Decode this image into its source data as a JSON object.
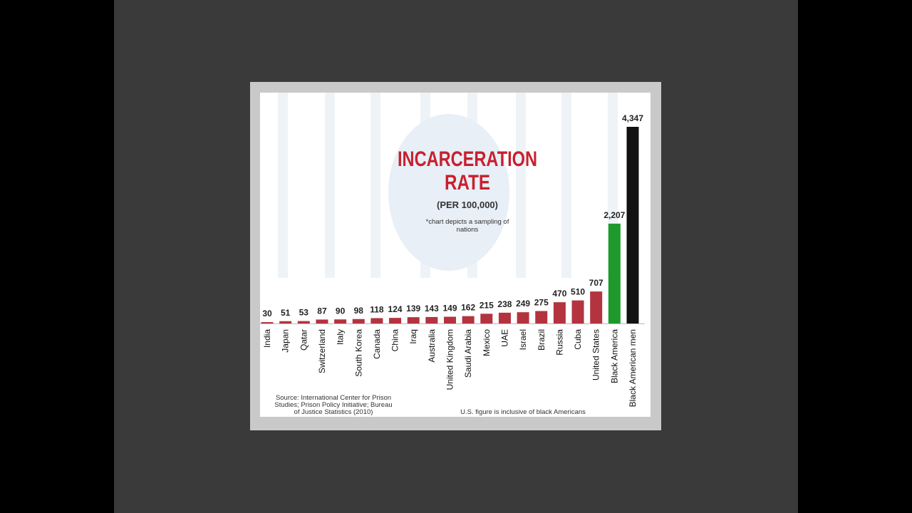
{
  "chart_data": {
    "type": "bar",
    "title": [
      "INCARCERATION",
      "RATE"
    ],
    "subtitle": "(PER 100,000)",
    "note": [
      "*chart depicts a sampling of",
      "nations"
    ],
    "source": [
      "Source: International Center for Prison",
      "Studies; Prison Policy Initiative; Bureau",
      "of Justice Statistics (2010)"
    ],
    "footnote": "U.S. figure is inclusive of black Americans",
    "categories": [
      "India",
      "Japan",
      "Qatar",
      "Switzerland",
      "Italy",
      "South Korea",
      "Canada",
      "China",
      "Iraq",
      "Australia",
      "United Kingdom",
      "Saudi Arabia",
      "Mexico",
      "UAE",
      "Israel",
      "Brazil",
      "Russia",
      "Cuba",
      "United States",
      "Black America",
      "Black American men"
    ],
    "values": [
      30,
      51,
      53,
      87,
      90,
      98,
      118,
      124,
      139,
      143,
      149,
      162,
      215,
      238,
      249,
      275,
      470,
      510,
      707,
      2207,
      4347
    ],
    "value_labels": [
      "30",
      "51",
      "53",
      "87",
      "90",
      "98",
      "118",
      "124",
      "139",
      "143",
      "149",
      "162",
      "215",
      "238",
      "249",
      "275",
      "470",
      "510",
      "707",
      "2,207",
      "4,347"
    ],
    "colors": [
      "#b3343f",
      "#b3343f",
      "#b3343f",
      "#b3343f",
      "#b3343f",
      "#b3343f",
      "#b3343f",
      "#b3343f",
      "#b3343f",
      "#b3343f",
      "#b3343f",
      "#b3343f",
      "#b3343f",
      "#b3343f",
      "#b3343f",
      "#b3343f",
      "#b3343f",
      "#b3343f",
      "#b3343f",
      "#1e9a2c",
      "#111111"
    ]
  }
}
